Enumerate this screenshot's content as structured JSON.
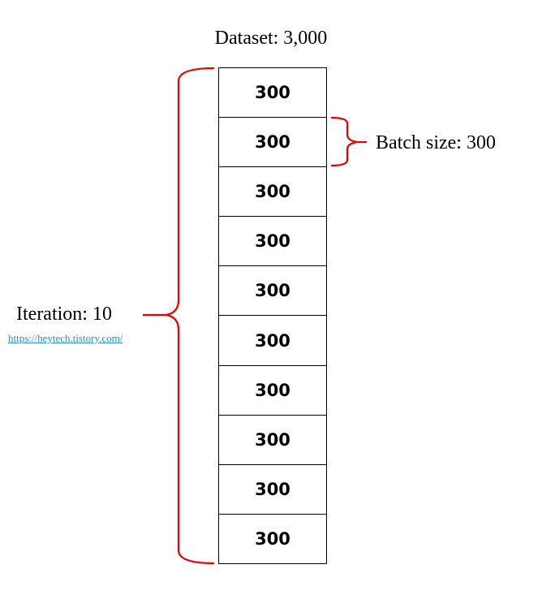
{
  "title": "Dataset: 3,000",
  "batches": [
    "300",
    "300",
    "300",
    "300",
    "300",
    "300",
    "300",
    "300",
    "300",
    "300"
  ],
  "batch_size_label": "Batch size: 300",
  "iteration_label": "Iteration: 10",
  "link_text": "https://heytech.tistory.com/",
  "colors": {
    "brace": "#e60000",
    "link": "#2a8ccf",
    "border": "#000000"
  }
}
